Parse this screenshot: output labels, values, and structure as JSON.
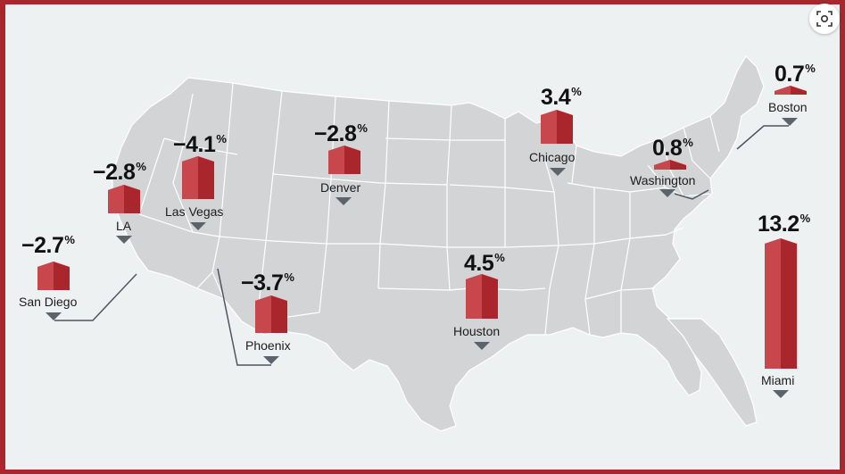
{
  "map": {
    "land_color": "#d2d4d6",
    "border_color": "#ffffff",
    "bar_color": "#a8262c",
    "bar_shade": "#c8474c",
    "bar_dark": "#8a1c22",
    "frame_color": "#a8262c"
  },
  "cities": {
    "san_diego": {
      "name": "San Diego",
      "value": "−2.7",
      "unit": "%"
    },
    "la": {
      "name": "LA",
      "value": "−2.8",
      "unit": "%"
    },
    "las_vegas": {
      "name": "Las Vegas",
      "value": "−4.1",
      "unit": "%"
    },
    "denver": {
      "name": "Denver",
      "value": "−2.8",
      "unit": "%"
    },
    "phoenix": {
      "name": "Phoenix",
      "value": "−3.7",
      "unit": "%"
    },
    "houston": {
      "name": "Houston",
      "value": "4.5",
      "unit": "%"
    },
    "chicago": {
      "name": "Chicago",
      "value": "3.4",
      "unit": "%"
    },
    "washington": {
      "name": "Washington",
      "value": "0.8",
      "unit": "%"
    },
    "boston": {
      "name": "Boston",
      "value": "0.7",
      "unit": "%"
    },
    "miami": {
      "name": "Miami",
      "value": "13.2",
      "unit": "%"
    }
  },
  "controls": {
    "zoom_icon": "lens-zoom-icon"
  }
}
